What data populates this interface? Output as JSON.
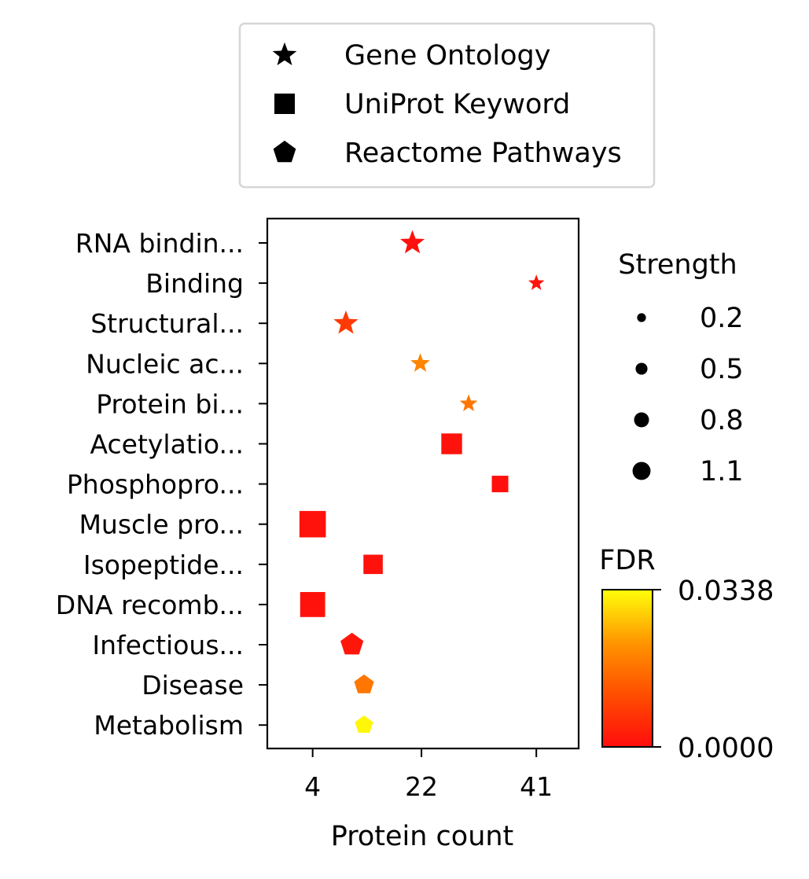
{
  "chart_data": {
    "type": "scatter",
    "xlabel": "Protein count",
    "xticks": [
      4,
      22,
      41
    ],
    "xlim": [
      -3.5,
      48
    ],
    "categories": [
      "RNA bindin...",
      "Binding",
      "Structural...",
      "Nucleic ac...",
      "Protein bi...",
      "Acetylatio...",
      "Phosphopro...",
      "Muscle pro...",
      "Isopeptide...",
      "DNA recomb...",
      "Infectious...",
      "Disease",
      "Metabolism"
    ],
    "points": [
      {
        "label": "RNA bindin...",
        "source": "Gene Ontology",
        "x": 20.5,
        "strength": 0.8,
        "fdr": 0.0005
      },
      {
        "label": "Binding",
        "source": "Gene Ontology",
        "x": 41,
        "strength": 0.3,
        "fdr": 0.0008
      },
      {
        "label": "Structural...",
        "source": "Gene Ontology",
        "x": 9.5,
        "strength": 0.8,
        "fdr": 0.008
      },
      {
        "label": "Nucleic ac...",
        "source": "Gene Ontology",
        "x": 21.8,
        "strength": 0.5,
        "fdr": 0.02
      },
      {
        "label": "Protein bi...",
        "source": "Gene Ontology",
        "x": 29.8,
        "strength": 0.4,
        "fdr": 0.018
      },
      {
        "label": "Acetylatio...",
        "source": "UniProt Keyword",
        "x": 27,
        "strength": 0.8,
        "fdr": 0.0008
      },
      {
        "label": "Phosphopro...",
        "source": "UniProt Keyword",
        "x": 35,
        "strength": 0.5,
        "fdr": 0.0005
      },
      {
        "label": "Muscle pro...",
        "source": "UniProt Keyword",
        "x": 4,
        "strength": 1.2,
        "fdr": 0.0008
      },
      {
        "label": "Isopeptide...",
        "source": "UniProt Keyword",
        "x": 14,
        "strength": 0.7,
        "fdr": 0.0008
      },
      {
        "label": "DNA recomb...",
        "source": "UniProt Keyword",
        "x": 4,
        "strength": 1.1,
        "fdr": 0.0008
      },
      {
        "label": "Infectious...",
        "source": "Reactome Pathways",
        "x": 10.5,
        "strength": 0.8,
        "fdr": 0.0015
      },
      {
        "label": "Disease",
        "source": "Reactome Pathways",
        "x": 12.5,
        "strength": 0.6,
        "fdr": 0.018
      },
      {
        "label": "Metabolism",
        "source": "Reactome Pathways",
        "x": 12.5,
        "strength": 0.5,
        "fdr": 0.033
      }
    ],
    "shape_legend": [
      {
        "label": "Gene Ontology",
        "marker": "star"
      },
      {
        "label": "UniProt Keyword",
        "marker": "square"
      },
      {
        "label": "Reactome Pathways",
        "marker": "pentagon"
      }
    ],
    "size_legend": {
      "title": "Strength",
      "entries": [
        {
          "label": "0.2",
          "value": 0.2
        },
        {
          "label": "0.5",
          "value": 0.5
        },
        {
          "label": "0.8",
          "value": 0.8
        },
        {
          "label": "1.1",
          "value": 1.1
        }
      ]
    },
    "colorbar": {
      "title": "FDR",
      "min": 0.0,
      "max": 0.0338,
      "min_label": "0.0000",
      "max_label": "0.0338",
      "colors": [
        "#ff0d0d",
        "#ff4d00",
        "#ff9400",
        "#ffff0a"
      ]
    }
  }
}
